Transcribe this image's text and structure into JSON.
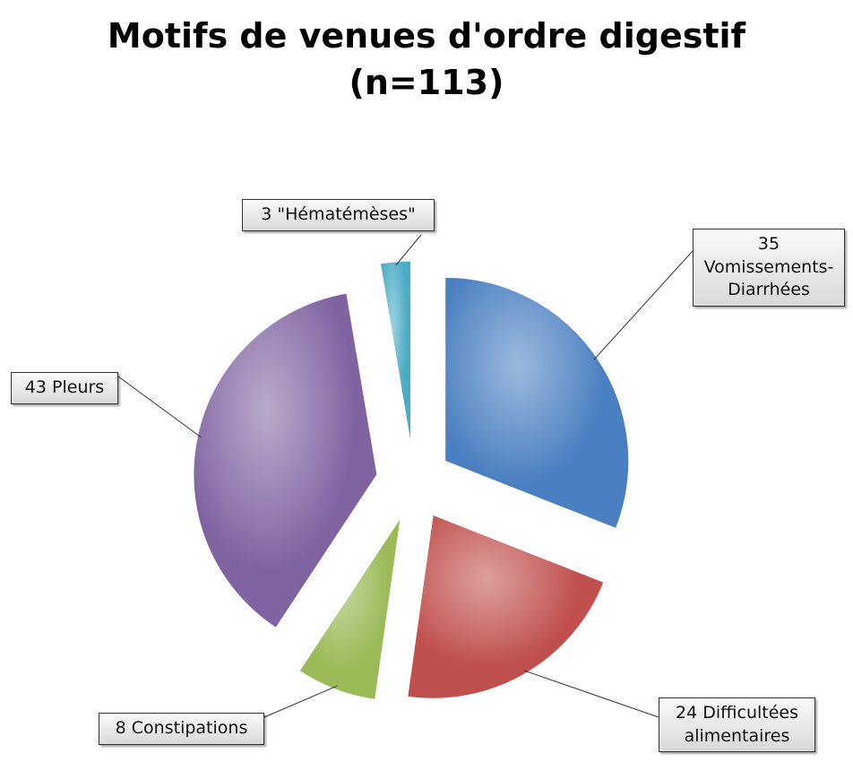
{
  "chart_data": {
    "type": "pie",
    "title": "Motifs de venues d'ordre digestif",
    "subtitle": "(n=113)",
    "categories": [
      "Vomissements-Diarrhées",
      "Difficultées alimentaires",
      "Constipations",
      "Pleurs",
      "\"Hématémèses\""
    ],
    "values": [
      35,
      24,
      8,
      43,
      3
    ],
    "colors": [
      "#4a7fc1",
      "#c0504d",
      "#9bbb59",
      "#8064a2",
      "#4bacc6"
    ]
  }
}
